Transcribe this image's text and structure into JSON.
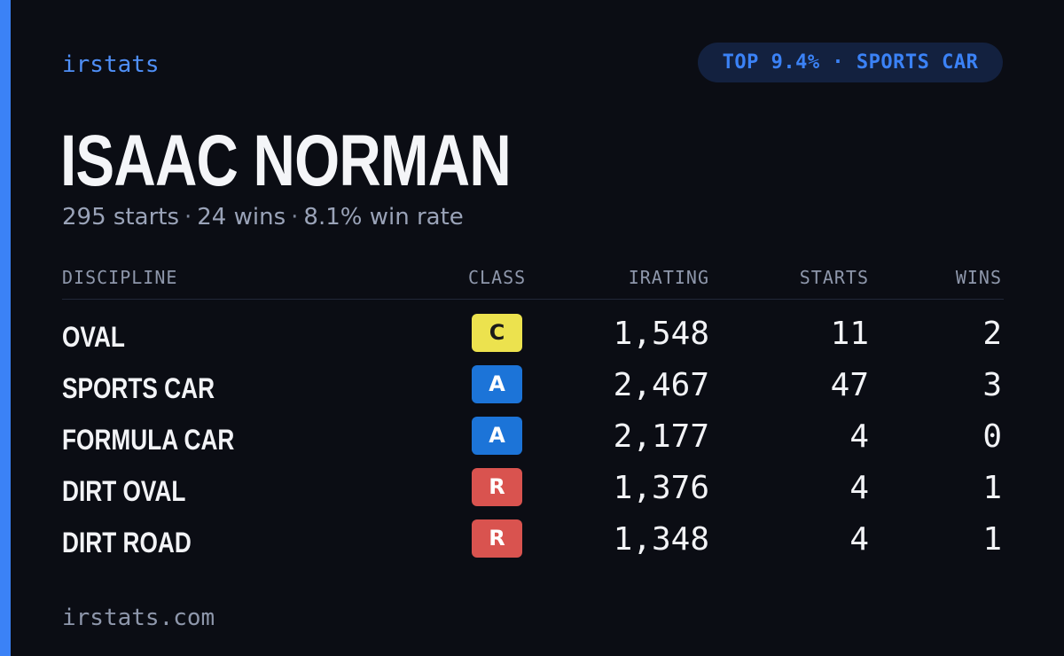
{
  "brand": "irstats",
  "rank_badge": "TOP 9.4% · SPORTS CAR",
  "driver": {
    "name": "ISAAC NORMAN",
    "starts_text": "295 starts",
    "wins_text": "24 wins",
    "winrate_text": "8.1% win rate",
    "separator": "·"
  },
  "table": {
    "headers": {
      "discipline": "DISCIPLINE",
      "class": "CLASS",
      "irating": "IRATING",
      "starts": "STARTS",
      "wins": "WINS"
    },
    "rows": [
      {
        "discipline": "OVAL",
        "class": "C",
        "class_bg": "#ece24e",
        "class_fg": "#1a1a1a",
        "irating": "1,548",
        "starts": "11",
        "wins": "2"
      },
      {
        "discipline": "SPORTS CAR",
        "class": "A",
        "class_bg": "#1c74d8",
        "class_fg": "#ffffff",
        "irating": "2,467",
        "starts": "47",
        "wins": "3"
      },
      {
        "discipline": "FORMULA CAR",
        "class": "A",
        "class_bg": "#1c74d8",
        "class_fg": "#ffffff",
        "irating": "2,177",
        "starts": "4",
        "wins": "0"
      },
      {
        "discipline": "DIRT OVAL",
        "class": "R",
        "class_bg": "#d9534f",
        "class_fg": "#ffffff",
        "irating": "1,376",
        "starts": "4",
        "wins": "1"
      },
      {
        "discipline": "DIRT ROAD",
        "class": "R",
        "class_bg": "#d9534f",
        "class_fg": "#ffffff",
        "irating": "1,348",
        "starts": "4",
        "wins": "1"
      }
    ]
  },
  "footer": "irstats.com",
  "colors": {
    "background": "#0b0d14",
    "accent": "#3b82f6",
    "badge_bg": "#13213f",
    "muted_text": "#9aa3b8"
  }
}
